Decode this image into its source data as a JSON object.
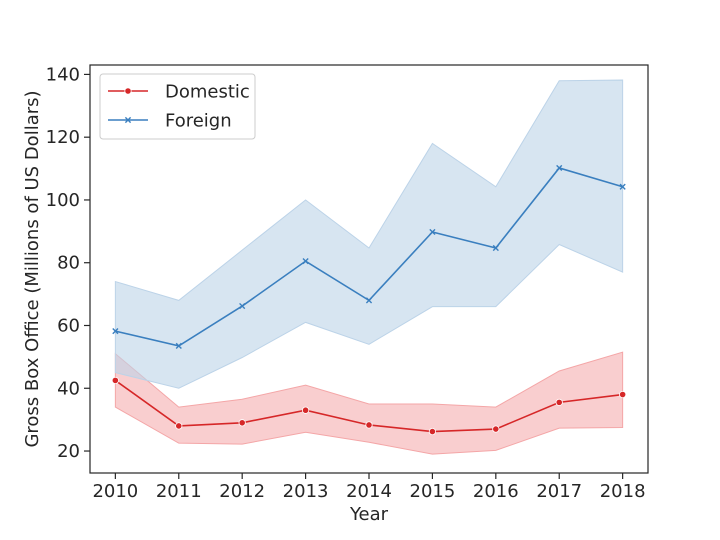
{
  "chart_data": {
    "type": "line",
    "title": "",
    "xlabel": "Year",
    "ylabel": "Gross Box Office (Millions of US Dollars)",
    "x": [
      2010,
      2011,
      2012,
      2013,
      2014,
      2015,
      2016,
      2017,
      2018
    ],
    "xticks": [
      "2010",
      "2011",
      "2012",
      "2013",
      "2014",
      "2015",
      "2016",
      "2017",
      "2018"
    ],
    "xlim": [
      2009.6,
      2018.4
    ],
    "ylim": [
      13,
      143
    ],
    "yticks": [
      20,
      40,
      60,
      80,
      100,
      120,
      140
    ],
    "grid": false,
    "legend": {
      "position": "top-left"
    },
    "series": [
      {
        "name": "Domestic",
        "marker": "circle",
        "color": "#d62728",
        "band_color": "#f4a6a7",
        "values": [
          42.5,
          28,
          29,
          33,
          28.3,
          26.2,
          27,
          35.5,
          38
        ],
        "ci_lower": [
          34,
          22.5,
          22.2,
          26,
          22.8,
          19,
          20.2,
          27.3,
          27.5
        ],
        "ci_upper": [
          51,
          34,
          36.5,
          41,
          35,
          35,
          34,
          45.5,
          51.5
        ]
      },
      {
        "name": "Foreign",
        "marker": "x",
        "color": "#3a7fbf",
        "band_color": "#bcd3e8",
        "values": [
          58.2,
          53.5,
          66.2,
          80.5,
          68,
          89.8,
          84.7,
          110.2,
          104.2
        ],
        "ci_lower": [
          45,
          40,
          49.8,
          61,
          54,
          66,
          66,
          85.8,
          77
        ],
        "ci_upper": [
          74,
          68,
          84,
          100,
          84.7,
          118,
          104.2,
          138,
          138.2
        ]
      }
    ]
  }
}
